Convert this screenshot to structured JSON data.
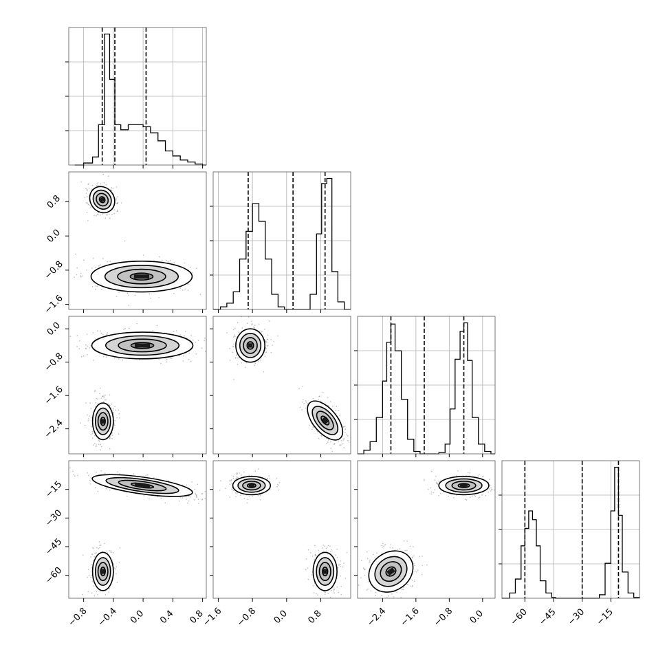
{
  "chart_data": {
    "type": "corner",
    "parameters": [
      {
        "range": [
          -1.0,
          0.85
        ],
        "xticks": [
          "−0.8",
          "−0.4",
          "0.0",
          "0.4",
          "0.8"
        ],
        "xtick_values": [
          -0.8,
          -0.4,
          0.0,
          0.4,
          0.8
        ],
        "yticks": [
          "−0.8",
          "0.0",
          "0.8"
        ],
        "ytick_values": [
          -0.8,
          0.0,
          0.8
        ]
      },
      {
        "range": [
          -1.72,
          1.5
        ],
        "xticks": [
          "−1.6",
          "−0.8",
          "0.0",
          "0.8"
        ],
        "xtick_values": [
          -1.6,
          -0.8,
          0.0,
          0.8
        ],
        "yticks": [
          "−1.6",
          "−0.8",
          "0.0",
          "0.8"
        ],
        "ytick_values": [
          -1.6,
          -0.8,
          0.0,
          0.8
        ]
      },
      {
        "range": [
          -3.0,
          0.3
        ],
        "xticks": [
          "−2.4",
          "−1.6",
          "−0.8",
          "0.0"
        ],
        "xtick_values": [
          -2.4,
          -1.6,
          -0.8,
          0.0
        ],
        "yticks": [
          "−2.4",
          "−1.6",
          "−0.8",
          "0.0"
        ],
        "ytick_values": [
          -2.4,
          -1.6,
          -0.8,
          0.0
        ]
      },
      {
        "range": [
          -72,
          0
        ],
        "xticks": [
          "−60",
          "−45",
          "−30",
          "−15"
        ],
        "xtick_values": [
          -60,
          -45,
          -30,
          -15
        ],
        "yticks": [
          "−60",
          "−45",
          "−30",
          "−15"
        ],
        "ytick_values": [
          -60,
          -45,
          -30,
          -15
        ]
      }
    ],
    "histograms": [
      {
        "quantiles": [
          -0.55,
          -0.38,
          0.04
        ],
        "x": [
          -0.92,
          -0.8,
          -0.68,
          -0.6,
          -0.52,
          -0.45,
          -0.38,
          -0.3,
          -0.2,
          -0.1,
          0.0,
          0.1,
          0.2,
          0.3,
          0.4,
          0.5,
          0.6,
          0.7,
          0.8
        ],
        "y": [
          0,
          2,
          8,
          40,
          130,
          85,
          40,
          35,
          40,
          40,
          38,
          32,
          24,
          14,
          9,
          5,
          3,
          1,
          0
        ]
      },
      {
        "quantiles": [
          -0.9,
          0.15,
          0.9
        ],
        "x": [
          -1.72,
          -1.55,
          -1.4,
          -1.25,
          -1.1,
          -0.95,
          -0.8,
          -0.65,
          -0.5,
          -0.35,
          -0.2,
          -0.05,
          0.1,
          0.25,
          0.4,
          0.55,
          0.7,
          0.82,
          0.94,
          1.06,
          1.2,
          1.35,
          1.5
        ],
        "y": [
          0,
          2,
          5,
          14,
          40,
          62,
          84,
          70,
          40,
          12,
          2,
          0,
          0,
          0,
          0,
          12,
          60,
          100,
          104,
          30,
          6,
          0,
          0
        ]
      },
      {
        "quantiles": [
          -2.2,
          -1.4,
          -0.45
        ],
        "x": [
          -3.0,
          -2.85,
          -2.7,
          -2.55,
          -2.4,
          -2.3,
          -2.2,
          -2.1,
          -1.95,
          -1.8,
          -1.65,
          -1.5,
          -1.35,
          -1.2,
          -1.05,
          -0.9,
          -0.78,
          -0.66,
          -0.54,
          -0.45,
          -0.36,
          -0.25,
          -0.1,
          0.05,
          0.2
        ],
        "y": [
          0,
          3,
          10,
          30,
          60,
          92,
          107,
          85,
          45,
          12,
          2,
          0,
          0,
          0,
          1,
          8,
          37,
          78,
          101,
          108,
          77,
          30,
          8,
          2,
          0
        ]
      },
      {
        "quantiles": [
          -60,
          -30,
          -11
        ],
        "x": [
          -72,
          -68,
          -65,
          -62,
          -60,
          -58,
          -56,
          -54,
          -52,
          -49,
          -46,
          -44,
          -42,
          -30,
          -24,
          -21,
          -18,
          -15,
          -13,
          -11,
          -9,
          -6,
          -3,
          0
        ],
        "y": [
          0,
          6,
          22,
          60,
          80,
          100,
          90,
          60,
          20,
          6,
          1,
          0,
          0,
          0,
          0,
          4,
          40,
          100,
          150,
          95,
          30,
          6,
          1,
          0
        ]
      }
    ],
    "joint_clusters": [
      {
        "row": 1,
        "col": 0,
        "blobs": [
          {
            "cx": -0.55,
            "cy": 0.85,
            "sx": 0.08,
            "sy": 0.16,
            "rot": -35,
            "mass": 1.0
          },
          {
            "cx": -0.02,
            "cy": -0.95,
            "sx": 0.34,
            "sy": 0.18,
            "rot": 0,
            "mass": 1.0
          }
        ]
      },
      {
        "row": 2,
        "col": 0,
        "blobs": [
          {
            "cx": -0.01,
            "cy": -0.4,
            "sx": 0.34,
            "sy": 0.16,
            "rot": 0,
            "mass": 1.0
          },
          {
            "cx": -0.54,
            "cy": -2.22,
            "sx": 0.07,
            "sy": 0.22,
            "rot": 0,
            "mass": 1.0
          }
        ]
      },
      {
        "row": 3,
        "col": 0,
        "blobs": [
          {
            "cx": -0.01,
            "cy": -13,
            "sx": 0.34,
            "sy": 2.2,
            "rot": 8,
            "mass": 1.0
          },
          {
            "cx": -0.54,
            "cy": -58,
            "sx": 0.07,
            "sy": 5.0,
            "rot": 0,
            "mass": 1.0
          }
        ]
      },
      {
        "row": 2,
        "col": 1,
        "blobs": [
          {
            "cx": -0.85,
            "cy": -0.4,
            "sx": 0.17,
            "sy": 0.2,
            "rot": 0,
            "mass": 1.0
          },
          {
            "cx": 0.9,
            "cy": -2.2,
            "sx": 0.14,
            "sy": 0.28,
            "rot": -40,
            "mass": 1.0
          }
        ]
      },
      {
        "row": 3,
        "col": 1,
        "blobs": [
          {
            "cx": -0.82,
            "cy": -13,
            "sx": 0.22,
            "sy": 2.4,
            "rot": 0,
            "mass": 1.0
          },
          {
            "cx": 0.9,
            "cy": -58,
            "sx": 0.14,
            "sy": 5.0,
            "rot": 0,
            "mass": 1.0
          }
        ]
      },
      {
        "row": 3,
        "col": 2,
        "blobs": [
          {
            "cx": -0.45,
            "cy": -13,
            "sx": 0.3,
            "sy": 2.4,
            "rot": 0,
            "mass": 1.0
          },
          {
            "cx": -2.2,
            "cy": -58,
            "sx": 0.28,
            "sy": 5.0,
            "rot": -35,
            "mass": 1.0
          }
        ]
      }
    ],
    "grid": true,
    "colors": {
      "line": "#000000",
      "grid": "#b0b0b0",
      "fill_light": "#e6e6e6",
      "fill_mid": "#b3b3b3",
      "fill_dark": "#6e6e6e",
      "fill_core": "#1a1a1a"
    }
  }
}
